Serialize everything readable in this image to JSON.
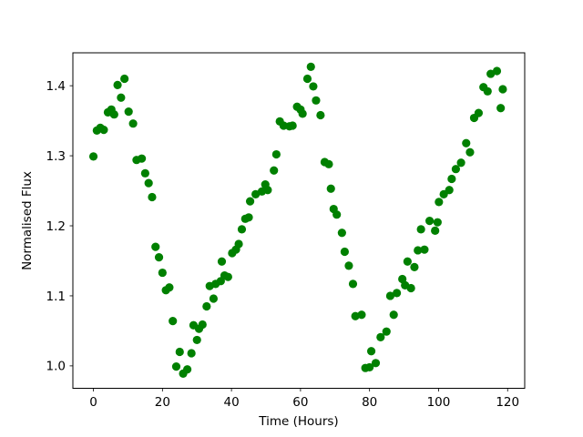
{
  "chart_data": {
    "type": "scatter",
    "title": "",
    "xlabel": "Time (Hours)",
    "ylabel": "Normalised Flux",
    "x_ticks": {
      "values": [
        0,
        20,
        40,
        60,
        80,
        100,
        120
      ],
      "labels": [
        "0",
        "20",
        "40",
        "60",
        "80",
        "100",
        "120"
      ]
    },
    "y_ticks": {
      "values": [
        1.0,
        1.1,
        1.2,
        1.3,
        1.4
      ],
      "labels": [
        "1.0",
        "1.1",
        "1.2",
        "1.3",
        "1.4"
      ]
    },
    "xlim": [
      -5.95,
      124.95
    ],
    "ylim": [
      0.968,
      1.447
    ],
    "grid": false,
    "legend": false,
    "background": "#ffffff",
    "axis_color": "#000000",
    "marker": {
      "shape": "circle",
      "color": "#008000",
      "radius_px": 4.6
    },
    "points": [
      [
        0,
        1.299
      ],
      [
        1,
        1.336
      ],
      [
        2,
        1.34
      ],
      [
        3,
        1.337
      ],
      [
        4.2,
        1.362
      ],
      [
        5.2,
        1.366
      ],
      [
        6,
        1.359
      ],
      [
        7,
        1.401
      ],
      [
        8,
        1.383
      ],
      [
        9,
        1.41
      ],
      [
        10.2,
        1.363
      ],
      [
        11.5,
        1.346
      ],
      [
        12.5,
        1.294
      ],
      [
        14,
        1.296
      ],
      [
        15,
        1.275
      ],
      [
        16,
        1.261
      ],
      [
        17,
        1.241
      ],
      [
        18,
        1.17
      ],
      [
        19,
        1.155
      ],
      [
        20,
        1.133
      ],
      [
        21,
        1.108
      ],
      [
        22,
        1.112
      ],
      [
        23,
        1.064
      ],
      [
        24,
        0.999
      ],
      [
        25,
        1.02
      ],
      [
        26,
        0.989
      ],
      [
        27.2,
        0.995
      ],
      [
        28.4,
        1.018
      ],
      [
        29,
        1.058
      ],
      [
        30,
        1.037
      ],
      [
        30.6,
        1.053
      ],
      [
        31.6,
        1.059
      ],
      [
        32.8,
        1.085
      ],
      [
        33.7,
        1.114
      ],
      [
        34.8,
        1.096
      ],
      [
        35.4,
        1.117
      ],
      [
        36.9,
        1.121
      ],
      [
        37.2,
        1.149
      ],
      [
        38,
        1.129
      ],
      [
        39,
        1.127
      ],
      [
        40.2,
        1.161
      ],
      [
        41.3,
        1.166
      ],
      [
        42.1,
        1.174
      ],
      [
        43,
        1.195
      ],
      [
        44,
        1.21
      ],
      [
        45,
        1.212
      ],
      [
        45.4,
        1.235
      ],
      [
        47,
        1.245
      ],
      [
        48.8,
        1.249
      ],
      [
        49.8,
        1.259
      ],
      [
        50.5,
        1.251
      ],
      [
        52.3,
        1.279
      ],
      [
        53,
        1.302
      ],
      [
        54,
        1.349
      ],
      [
        55.1,
        1.343
      ],
      [
        56.8,
        1.342
      ],
      [
        57.7,
        1.343
      ],
      [
        59,
        1.37
      ],
      [
        60,
        1.366
      ],
      [
        60.6,
        1.36
      ],
      [
        62,
        1.41
      ],
      [
        63,
        1.427
      ],
      [
        63.7,
        1.399
      ],
      [
        64.5,
        1.379
      ],
      [
        65.8,
        1.358
      ],
      [
        67,
        1.291
      ],
      [
        68.2,
        1.288
      ],
      [
        68.8,
        1.253
      ],
      [
        69.6,
        1.224
      ],
      [
        70.5,
        1.216
      ],
      [
        72,
        1.19
      ],
      [
        72.8,
        1.163
      ],
      [
        74,
        1.143
      ],
      [
        75.2,
        1.117
      ],
      [
        75.9,
        1.071
      ],
      [
        77.7,
        1.073
      ],
      [
        78.8,
        0.997
      ],
      [
        80,
        0.998
      ],
      [
        80.5,
        1.021
      ],
      [
        81.8,
        1.004
      ],
      [
        83.2,
        1.041
      ],
      [
        84.9,
        1.049
      ],
      [
        86,
        1.1
      ],
      [
        87,
        1.073
      ],
      [
        87.9,
        1.104
      ],
      [
        89.5,
        1.124
      ],
      [
        90.3,
        1.115
      ],
      [
        91,
        1.149
      ],
      [
        92,
        1.111
      ],
      [
        93,
        1.141
      ],
      [
        94,
        1.165
      ],
      [
        94.9,
        1.195
      ],
      [
        95.9,
        1.166
      ],
      [
        97.4,
        1.207
      ],
      [
        99,
        1.193
      ],
      [
        99.7,
        1.205
      ],
      [
        100.1,
        1.234
      ],
      [
        101.5,
        1.245
      ],
      [
        103.1,
        1.251
      ],
      [
        103.8,
        1.267
      ],
      [
        105,
        1.281
      ],
      [
        106.5,
        1.29
      ],
      [
        108,
        1.318
      ],
      [
        109.1,
        1.305
      ],
      [
        110.3,
        1.354
      ],
      [
        111.6,
        1.361
      ],
      [
        113,
        1.398
      ],
      [
        114.2,
        1.392
      ],
      [
        115.1,
        1.417
      ],
      [
        116.9,
        1.421
      ],
      [
        118,
        1.368
      ],
      [
        118.6,
        1.395
      ]
    ]
  }
}
